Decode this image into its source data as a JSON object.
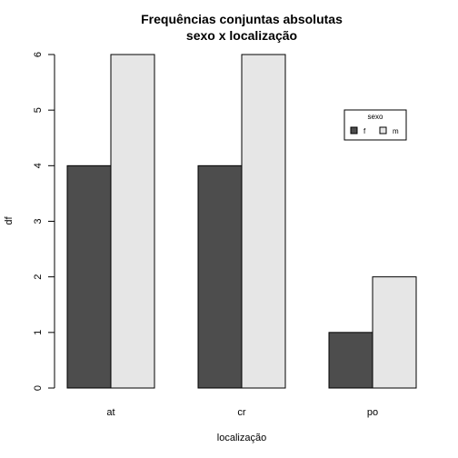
{
  "chart_data": {
    "type": "bar",
    "title_line1": "Frequências conjuntas absolutas",
    "title_line2": "sexo x localização",
    "xlabel": "localização",
    "ylabel": "df",
    "categories": [
      "at",
      "cr",
      "po"
    ],
    "series": [
      {
        "name": "f",
        "values": [
          4,
          4,
          1
        ],
        "color": "#4d4d4d"
      },
      {
        "name": "m",
        "values": [
          6,
          6,
          2
        ],
        "color": "#e6e6e6"
      }
    ],
    "ylim": [
      0,
      6
    ],
    "yticks": [
      0,
      1,
      2,
      3,
      4,
      5,
      6
    ],
    "grid": false,
    "legend": {
      "title": "sexo",
      "placement": "top-right"
    }
  }
}
